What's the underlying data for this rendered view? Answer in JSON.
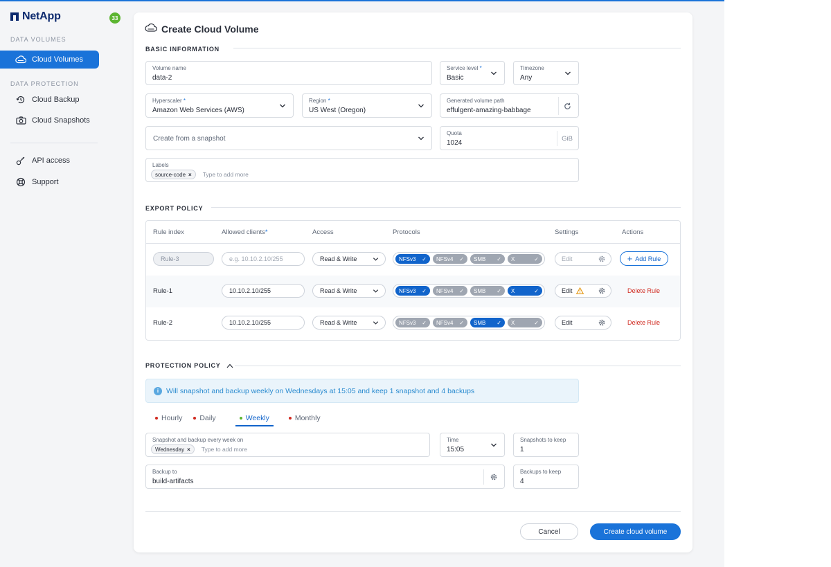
{
  "app": {
    "brand": "NetApp",
    "notification_count": "33"
  },
  "sidebar": {
    "section_data_volumes": "DATA VOLUMES",
    "cloud_volumes": "Cloud Volumes",
    "section_data_protection": "DATA PROTECTION",
    "cloud_backup": "Cloud Backup",
    "cloud_snapshots": "Cloud Snapshots",
    "api_access": "API access",
    "support": "Support"
  },
  "page": {
    "title": "Create Cloud Volume"
  },
  "basic": {
    "heading": "BASIC INFORMATION",
    "volume_name": {
      "label": "Volume name",
      "value": "data-2"
    },
    "service_level": {
      "label": "Service level",
      "value": "Basic"
    },
    "timezone": {
      "label": "Timezone",
      "value": "Any"
    },
    "hyperscaler": {
      "label": "Hyperscaler",
      "value": "Amazon Web Services (AWS)"
    },
    "region": {
      "label": "Region",
      "value": "US West (Oregon)"
    },
    "path": {
      "label": "Generated volume path",
      "value": "effulgent-amazing-babbage"
    },
    "snapshot": {
      "placeholder": "Create from a snapshot"
    },
    "quota": {
      "label": "Quota",
      "value": "1024",
      "unit": "GiB"
    },
    "labels": {
      "label": "Labels",
      "chip": "source-code",
      "placeholder": "Type to add more"
    },
    "required_mark": "*"
  },
  "export": {
    "heading": "EXPORT POLICY",
    "headers": {
      "rule_index": "Rule index",
      "allowed_clients": "Allowed clients",
      "access": "Access",
      "protocols": "Protocols",
      "settings": "Settings",
      "actions": "Actions"
    },
    "new_rule": {
      "index_placeholder": "Rule-3",
      "clients_placeholder": "e.g. 10.10.2.10/255",
      "access": "Read & Write",
      "edit": "Edit",
      "add_label": "Add Rule"
    },
    "rules": [
      {
        "index": "Rule-1",
        "clients": "10.10.2.10/255",
        "access": "Read & Write",
        "edit": "Edit",
        "delete": "Delete Rule"
      },
      {
        "index": "Rule-2",
        "clients": "10.10.2.10/255",
        "access": "Read & Write",
        "edit": "Edit",
        "delete": "Delete Rule"
      }
    ],
    "protocols": [
      "NFSv3",
      "NFSv4",
      "SMB",
      "X"
    ]
  },
  "protection": {
    "heading": "PROTECTION POLICY",
    "info": "Will snapshot and backup weekly on Wednesdays at 15:05 and keep 1 snapshot and 4 backups",
    "tabs": [
      "Hourly",
      "Daily",
      "Weekly",
      "Monthly"
    ],
    "every_week": {
      "label": "Snapshot and backup every week on",
      "chip": "Wednesday",
      "placeholder": "Type to add more"
    },
    "time": {
      "label": "Time",
      "value": "15:05"
    },
    "snapshots_keep": {
      "label": "Snapshots to keep",
      "value": "1"
    },
    "backup_to": {
      "label": "Backup to",
      "value": "build-artifacts"
    },
    "backups_keep": {
      "label": "Backups to keep",
      "value": "4"
    }
  },
  "footer": {
    "cancel": "Cancel",
    "create": "Create cloud volume"
  },
  "colors": {
    "accent": "#1a73d9",
    "danger": "#d0291f",
    "success": "#5cb531",
    "protocol_on": "#1164cb",
    "protocol_off": "#9fa6b1"
  }
}
